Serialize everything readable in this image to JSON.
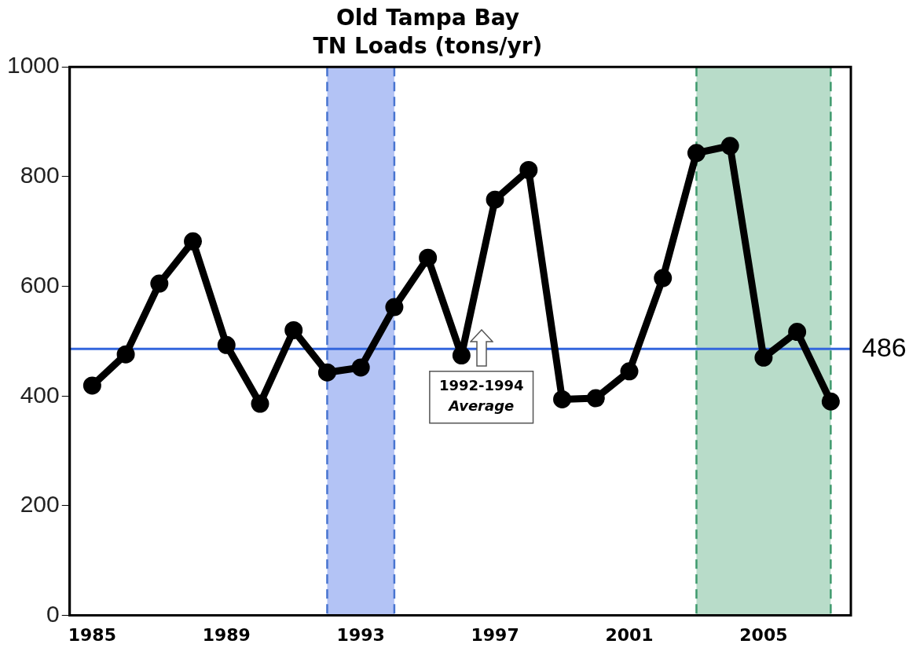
{
  "chart_data": {
    "type": "line",
    "title": "Old Tampa Bay",
    "subtitle": "TN Loads (tons/yr)",
    "x": [
      1985,
      1986,
      1987,
      1988,
      1989,
      1990,
      1991,
      1992,
      1993,
      1994,
      1995,
      1996,
      1997,
      1998,
      1999,
      2000,
      2001,
      2002,
      2003,
      2004,
      2005,
      2006,
      2007
    ],
    "series": [
      {
        "color": "#000000",
        "values": [
          419,
          476,
          605,
          682,
          493,
          386,
          520,
          443,
          452,
          562,
          652,
          474,
          758,
          812,
          394,
          396,
          445,
          615,
          843,
          856,
          470,
          517,
          390
        ]
      }
    ],
    "xlim": [
      1984.33,
      2007.6
    ],
    "xticks": [
      1985,
      1989,
      1993,
      1997,
      2001,
      2005
    ],
    "ylim": [
      0,
      1000
    ],
    "yticks": [
      0,
      200,
      400,
      600,
      800,
      1000
    ],
    "ref_lines": [
      {
        "axis": "y",
        "value": 486,
        "label": "486",
        "color": "#3366dd"
      },
      {
        "axis": "x",
        "value": 1992,
        "color": "#4875d0",
        "line_style": "dashed"
      },
      {
        "axis": "x",
        "value": 1994,
        "color": "#4875d0",
        "line_style": "dashed"
      },
      {
        "axis": "x",
        "value": 2003,
        "color": "#3f9a6e",
        "line_style": "dashed"
      },
      {
        "axis": "x",
        "value": 2007,
        "color": "#3f9a6e",
        "line_style": "dashed"
      }
    ],
    "bands": [
      {
        "axis": "x",
        "from": 1992,
        "to": 1994,
        "color": "#b3c3f5"
      },
      {
        "axis": "x",
        "from": 2003,
        "to": 2007,
        "color": "#b8dcc9"
      }
    ],
    "annotations": [
      "1992-1994 Average"
    ],
    "marker": "circle",
    "line_style": "solid",
    "grid": false,
    "legend": false
  }
}
